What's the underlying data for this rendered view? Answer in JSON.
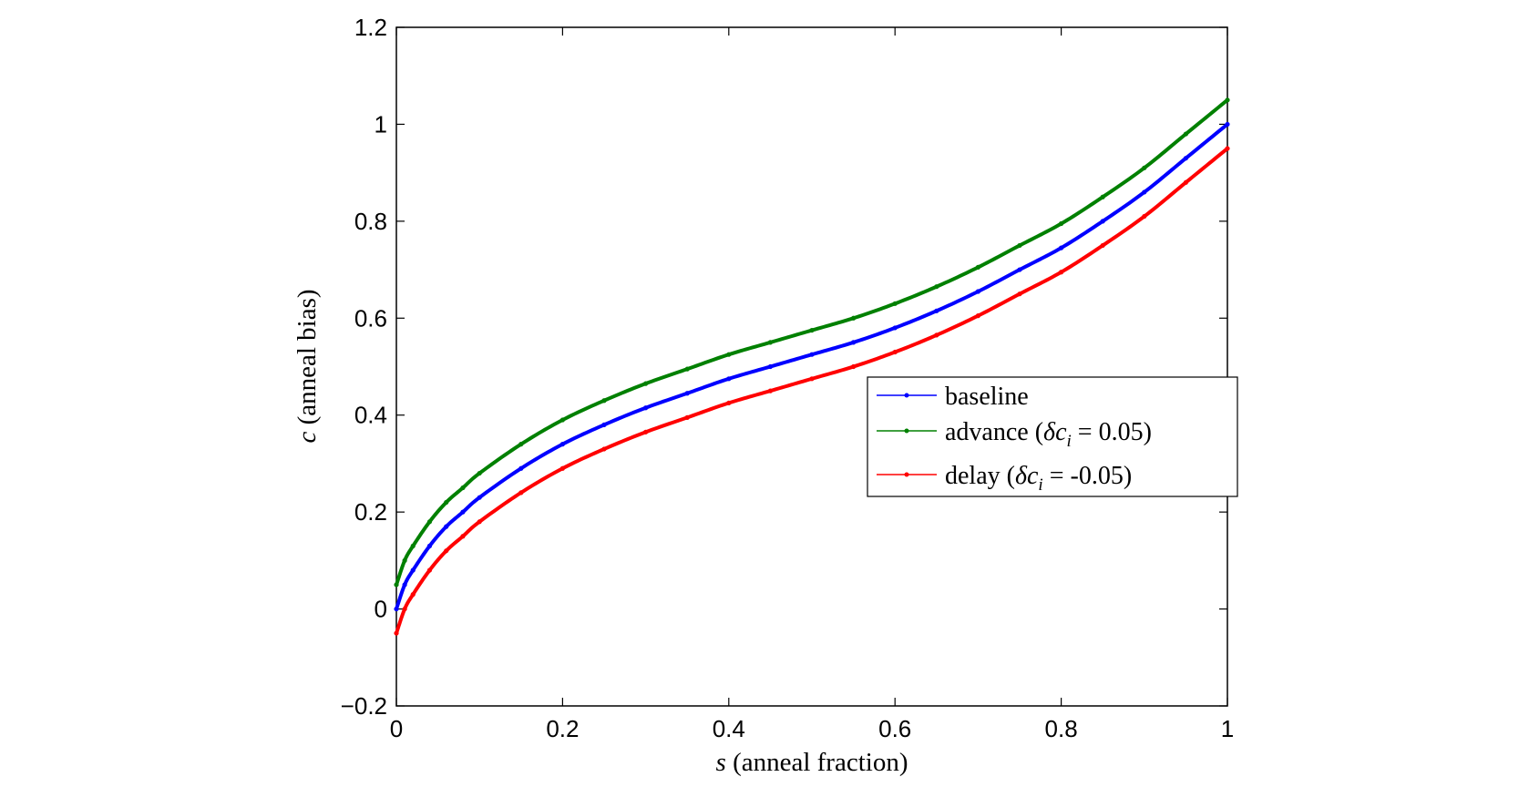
{
  "chart_data": {
    "type": "line",
    "xlabel": {
      "var": "s",
      "text": " (anneal fraction)"
    },
    "ylabel": {
      "var": "c",
      "text": " (anneal bias)"
    },
    "xlim": [
      0,
      1
    ],
    "ylim": [
      -0.2,
      1.2
    ],
    "xticks": [
      0,
      0.2,
      0.4,
      0.6,
      0.8,
      1
    ],
    "xtick_labels": [
      "0",
      "0.2",
      "0.4",
      "0.6",
      "0.8",
      "1"
    ],
    "yticks": [
      -0.2,
      0,
      0.2,
      0.4,
      0.6,
      0.8,
      1,
      1.2
    ],
    "ytick_labels": [
      "−0.2",
      "0",
      "0.2",
      "0.4",
      "0.6",
      "0.8",
      "1",
      "1.2"
    ],
    "grid": false,
    "legend_position": "center-right",
    "x": [
      0,
      0.01,
      0.02,
      0.04,
      0.06,
      0.08,
      0.1,
      0.15,
      0.2,
      0.25,
      0.3,
      0.35,
      0.4,
      0.45,
      0.5,
      0.55,
      0.6,
      0.65,
      0.7,
      0.75,
      0.8,
      0.85,
      0.9,
      0.95,
      1
    ],
    "series": [
      {
        "name": "baseline",
        "color": "#0000ff",
        "values": [
          0,
          0.05,
          0.08,
          0.13,
          0.17,
          0.2,
          0.23,
          0.29,
          0.34,
          0.38,
          0.415,
          0.445,
          0.475,
          0.5,
          0.525,
          0.55,
          0.58,
          0.615,
          0.655,
          0.7,
          0.745,
          0.8,
          0.86,
          0.93,
          1
        ]
      },
      {
        "name": "advance",
        "label_parts": [
          "advance (",
          "δc",
          "i",
          " = 0.05)"
        ],
        "color": "#008000",
        "values": [
          0.05,
          0.1,
          0.13,
          0.18,
          0.22,
          0.25,
          0.28,
          0.34,
          0.39,
          0.43,
          0.465,
          0.495,
          0.525,
          0.55,
          0.575,
          0.6,
          0.63,
          0.665,
          0.705,
          0.75,
          0.795,
          0.85,
          0.91,
          0.98,
          1.05
        ]
      },
      {
        "name": "delay",
        "label_parts": [
          "delay (",
          "δc",
          "i",
          " = -0.05)"
        ],
        "color": "#ff0000",
        "values": [
          -0.05,
          0,
          0.03,
          0.08,
          0.12,
          0.15,
          0.18,
          0.24,
          0.29,
          0.33,
          0.365,
          0.395,
          0.425,
          0.45,
          0.475,
          0.5,
          0.53,
          0.565,
          0.605,
          0.65,
          0.695,
          0.75,
          0.81,
          0.88,
          0.95
        ]
      }
    ]
  }
}
